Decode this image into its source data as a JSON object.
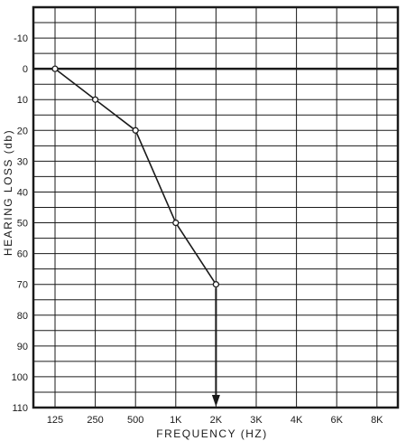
{
  "chart_data": {
    "type": "line",
    "title": "",
    "xlabel": "FREQUENCY (HZ)",
    "ylabel": "HEARING LOSS (db)",
    "categories": [
      "125",
      "250",
      "500",
      "1K",
      "2K",
      "3K",
      "4K",
      "6K",
      "8K"
    ],
    "yticks": [
      "-10",
      "0",
      "10",
      "20",
      "30",
      "40",
      "50",
      "60",
      "70",
      "80",
      "90",
      "100",
      "110"
    ],
    "ylim": [
      -20,
      110
    ],
    "y_inverted": true,
    "grid": true,
    "reference_line_y": 0,
    "series": [
      {
        "points": [
          {
            "x": "125",
            "y": 0
          },
          {
            "x": "250",
            "y": 10
          },
          {
            "x": "500",
            "y": 20
          },
          {
            "x": "1K",
            "y": 50
          },
          {
            "x": "2K",
            "y": 70
          }
        ]
      }
    ],
    "annotations": [
      {
        "type": "arrow-down",
        "x": "2K",
        "from_y": 70,
        "to_y": 110
      }
    ],
    "colors": {
      "ink": "#1a1a1a",
      "background": "#ffffff"
    }
  }
}
